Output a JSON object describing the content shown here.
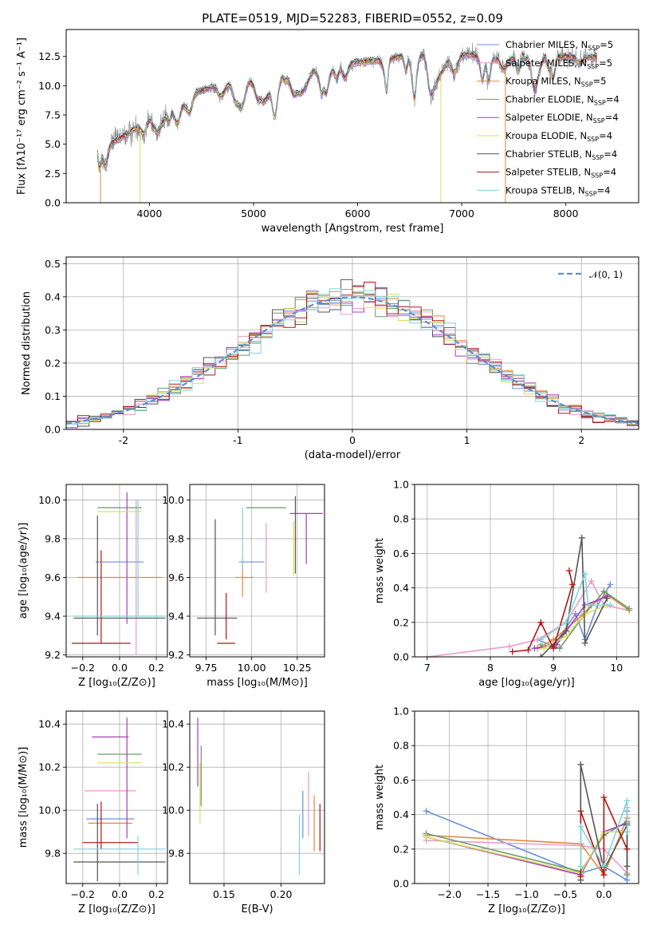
{
  "figure": {
    "title": "PLATE=0519, MJD=52283, FIBERID=0552, z=0.09"
  },
  "colors": {
    "Chabrier MILES": "#6a8fd8",
    "Salpeter MILES": "#e89cc8",
    "Kroupa MILES": "#e08a3c",
    "Chabrier ELODIE": "#6e9a6a",
    "Salpeter ELODIE": "#a73cc0",
    "Kroupa ELODIE": "#d9df5a",
    "Chabrier STELIB": "#555555",
    "Salpeter STELIB": "#b01515",
    "Kroupa STELIB": "#7fd4dc",
    "gaussian": "#5b8fd6",
    "data": "#808080",
    "grid": "#b0b0b0"
  },
  "chart_data": [
    {
      "id": "spectrum",
      "type": "line",
      "title": "PLATE=0519, MJD=52283, FIBERID=0552, z=0.09",
      "xlabel": "wavelength [Angstrom, rest frame]",
      "ylabel": "Flux [fλ10⁻¹⁷ erg cm⁻² s⁻¹ A⁻¹]",
      "xlim": [
        3200,
        8700
      ],
      "ylim": [
        0,
        14.8
      ],
      "xticks": [
        4000,
        5000,
        6000,
        7000,
        8000
      ],
      "yticks": [
        0.0,
        2.5,
        5.0,
        7.5,
        10.0,
        12.5
      ],
      "grid": false,
      "legend_position": "top-right",
      "x_range": [
        3500,
        8300
      ],
      "continuum": {
        "x": [
          3500,
          3700,
          3900,
          4100,
          4300,
          4500,
          4700,
          5000,
          5300,
          5600,
          5900,
          6200,
          6500,
          6800,
          7100,
          7400,
          7700,
          8000,
          8300
        ],
        "y": [
          4.6,
          5.4,
          6.5,
          8.0,
          9.0,
          9.6,
          10.1,
          10.7,
          11.1,
          11.5,
          11.9,
          12.2,
          12.6,
          12.8,
          12.6,
          12.3,
          12.4,
          12.5,
          12.4
        ]
      },
      "series": [
        {
          "name": "Chabrier MILES",
          "nssp_label": "N",
          "nssp_sub": "SSP",
          "nssp_value": "=5"
        },
        {
          "name": "Salpeter MILES",
          "nssp_label": "N",
          "nssp_sub": "SSP",
          "nssp_value": "=5"
        },
        {
          "name": "Kroupa MILES",
          "nssp_label": "N",
          "nssp_sub": "SSP",
          "nssp_value": "=5"
        },
        {
          "name": "Chabrier ELODIE",
          "nssp_label": "N",
          "nssp_sub": "SSP",
          "nssp_value": "=4"
        },
        {
          "name": "Salpeter ELODIE",
          "nssp_label": "N",
          "nssp_sub": "SSP",
          "nssp_value": "=4"
        },
        {
          "name": "Kroupa ELODIE",
          "nssp_label": "N",
          "nssp_sub": "SSP",
          "nssp_value": "=4"
        },
        {
          "name": "Chabrier STELIB",
          "nssp_label": "N",
          "nssp_sub": "SSP",
          "nssp_value": "=4"
        },
        {
          "name": "Salpeter STELIB",
          "nssp_label": "N",
          "nssp_sub": "SSP",
          "nssp_value": "=4"
        },
        {
          "name": "Kroupa STELIB",
          "nssp_label": "N",
          "nssp_sub": "SSP",
          "nssp_value": "=4"
        }
      ],
      "drop_lines": [
        {
          "x": 3530,
          "series": "Kroupa MILES"
        },
        {
          "x": 3910,
          "series": "Kroupa ELODIE"
        },
        {
          "x": 6800,
          "series": "Kroupa ELODIE"
        },
        {
          "x": 7420,
          "series": "Kroupa MILES"
        }
      ]
    },
    {
      "id": "residuals",
      "type": "histogram",
      "xlabel": "(data-model)/error",
      "ylabel": "Normed distribution",
      "xlim": [
        -2.5,
        2.5
      ],
      "ylim": [
        0,
        0.52
      ],
      "xticks": [
        -2,
        -1,
        0,
        1,
        2
      ],
      "yticks": [
        0.0,
        0.1,
        0.2,
        0.3,
        0.4,
        0.5
      ],
      "grid": true,
      "legend_position": "top-right",
      "legend": "𝒩(0, 1)",
      "bin_width": 0.1,
      "bin_start": -2.5
    },
    {
      "id": "age_vs_Z",
      "type": "errorbar",
      "xlabel": "Z [log₁₀(Z/Z⊙)]",
      "ylabel": "age  [log₁₀(age/yr)]",
      "xlim": [
        -0.29,
        0.26
      ],
      "ylim": [
        9.19,
        10.08
      ],
      "xticks": [
        -0.2,
        0.0,
        0.2
      ],
      "xticklabels": [
        "−0.2",
        "0.0",
        "0.2"
      ],
      "yticks": [
        9.2,
        9.4,
        9.6,
        9.8,
        10.0
      ],
      "grid": true,
      "points": [
        {
          "series": "Chabrier MILES",
          "x": 0.0,
          "xerr": 0.13,
          "y": 9.68,
          "yerr": 0.0
        },
        {
          "series": "Salpeter MILES",
          "x": 0.09,
          "xerr": 0.0,
          "y": 9.6,
          "yerr": 0.4
        },
        {
          "series": "Kroupa MILES",
          "x": 0.0,
          "xerr": 0.23,
          "y": 9.6,
          "yerr": 0.0
        },
        {
          "series": "Chabrier ELODIE",
          "x": 0.0,
          "xerr": 0.12,
          "y": 9.96,
          "yerr": 0.0
        },
        {
          "series": "Salpeter ELODIE",
          "x": 0.04,
          "xerr": 0.0,
          "y": 9.7,
          "yerr": 0.34
        },
        {
          "series": "Kroupa ELODIE",
          "x": 0.0,
          "xerr": 0.12,
          "y": 9.94,
          "yerr": 0.0
        },
        {
          "series": "Chabrier STELIB",
          "x": -0.12,
          "xerr": 0.0,
          "y": 9.61,
          "yerr": 0.31
        },
        {
          "series": "Salpeter STELIB",
          "x": -0.1,
          "xerr": 0.0,
          "y": 9.5,
          "yerr": 0.24
        },
        {
          "series": "Salpeter STELIB",
          "x": -0.1,
          "xerr": 0.16,
          "y": 9.26,
          "yerr": 0.0
        },
        {
          "series": "Kroupa STELIB",
          "x": 0.0,
          "xerr": 0.25,
          "y": 9.4,
          "yerr": 0.0
        },
        {
          "series": "Chabrier STELIB",
          "x": 0.0,
          "xerr": 0.25,
          "y": 9.39,
          "yerr": 0.0
        },
        {
          "series": "Kroupa STELIB",
          "x": 0.1,
          "xerr": 0.0,
          "y": 9.7,
          "yerr": 0.3
        }
      ]
    },
    {
      "id": "age_vs_mass",
      "type": "errorbar",
      "xlabel": "mass [log₁₀(M/M⊙)]",
      "xlim": [
        9.66,
        10.4
      ],
      "ylim": [
        9.19,
        10.08
      ],
      "xticks": [
        9.75,
        10.0,
        10.25
      ],
      "xticklabels": [
        "9.75",
        "10.00",
        "10.25"
      ],
      "yticks": [
        9.2,
        9.4,
        9.6,
        9.8,
        10.0
      ],
      "grid": true,
      "points": [
        {
          "series": "Chabrier MILES",
          "x": 10.0,
          "xerr": 0.07,
          "y": 9.68,
          "yerr": 0.0
        },
        {
          "series": "Salpeter MILES",
          "x": 10.08,
          "xerr": 0.0,
          "y": 9.7,
          "yerr": 0.18
        },
        {
          "series": "Kroupa MILES",
          "x": 9.96,
          "xerr": 0.05,
          "y": 9.6,
          "yerr": 0.0
        },
        {
          "series": "Kroupa MILES",
          "x": 9.95,
          "xerr": 0.0,
          "y": 9.6,
          "yerr": 0.1
        },
        {
          "series": "Chabrier ELODIE",
          "x": 10.08,
          "xerr": 0.11,
          "y": 9.96,
          "yerr": 0.0
        },
        {
          "series": "Salpeter ELODIE",
          "x": 10.3,
          "xerr": 0.09,
          "y": 9.93,
          "yerr": 0.0
        },
        {
          "series": "Salpeter ELODIE",
          "x": 10.3,
          "xerr": 0.0,
          "y": 9.8,
          "yerr": 0.13
        },
        {
          "series": "Kroupa ELODIE",
          "x": 10.23,
          "xerr": 0.0,
          "y": 9.75,
          "yerr": 0.14
        },
        {
          "series": "Chabrier STELIB",
          "x": 9.8,
          "xerr": 0.0,
          "y": 9.6,
          "yerr": 0.3
        },
        {
          "series": "Chabrier STELIB",
          "x": 9.81,
          "xerr": 0.11,
          "y": 9.39,
          "yerr": 0.0
        },
        {
          "series": "Chabrier STELIB",
          "x": 10.24,
          "xerr": 0.0,
          "y": 9.82,
          "yerr": 0.2
        },
        {
          "series": "Salpeter STELIB",
          "x": 9.86,
          "xerr": 0.05,
          "y": 9.26,
          "yerr": 0.0
        },
        {
          "series": "Salpeter STELIB",
          "x": 9.86,
          "xerr": 0.0,
          "y": 9.4,
          "yerr": 0.12
        },
        {
          "series": "Kroupa STELIB",
          "x": 9.95,
          "xerr": 0.0,
          "y": 9.8,
          "yerr": 0.16
        }
      ]
    },
    {
      "id": "weight_vs_age",
      "type": "line",
      "xlabel": "age  [log₁₀(age/yr)]",
      "ylabel": "mass weight",
      "xlim": [
        6.8,
        10.35
      ],
      "ylim": [
        0,
        1
      ],
      "xticks": [
        7,
        8,
        9,
        10
      ],
      "yticks": [
        0.0,
        0.2,
        0.4,
        0.6,
        0.8,
        1.0
      ],
      "grid": true,
      "series": [
        {
          "name": "Chabrier MILES",
          "x": [
            8.75,
            9.0,
            9.35,
            9.5,
            9.7,
            9.9
          ],
          "y": [
            0.1,
            0.06,
            0.25,
            0.1,
            0.3,
            0.42
          ]
        },
        {
          "name": "Salpeter MILES",
          "x": [
            7.0,
            8.3,
            8.75,
            9.2,
            9.6,
            9.8,
            10.2
          ],
          "y": [
            0.0,
            0.06,
            0.1,
            0.2,
            0.44,
            0.3,
            0.27
          ]
        },
        {
          "name": "Kroupa MILES",
          "x": [
            8.75,
            9.0,
            9.45,
            9.6,
            9.85,
            10.2
          ],
          "y": [
            0.05,
            0.1,
            0.24,
            0.3,
            0.36,
            0.27
          ]
        },
        {
          "name": "Chabrier ELODIE",
          "x": [
            8.8,
            9.1,
            9.5,
            9.8,
            10.2
          ],
          "y": [
            0.07,
            0.05,
            0.25,
            0.38,
            0.28
          ]
        },
        {
          "name": "Salpeter ELODIE",
          "x": [
            8.7,
            9.05,
            9.5,
            9.85
          ],
          "y": [
            0.05,
            0.07,
            0.3,
            0.35
          ]
        },
        {
          "name": "Kroupa ELODIE",
          "x": [
            8.85,
            9.2,
            9.5,
            9.85
          ],
          "y": [
            0.05,
            0.12,
            0.25,
            0.3
          ]
        },
        {
          "name": "Chabrier STELIB",
          "x": [
            8.8,
            9.2,
            9.45,
            9.5,
            9.85
          ],
          "y": [
            0.0,
            0.15,
            0.69,
            0.08,
            0.34
          ]
        },
        {
          "name": "Salpeter STELIB",
          "x": [
            8.35,
            8.6,
            8.8,
            9.0,
            9.3,
            9.25
          ],
          "y": [
            0.03,
            0.04,
            0.2,
            0.05,
            0.42,
            0.5
          ]
        },
        {
          "name": "Kroupa STELIB",
          "x": [
            8.8,
            9.2,
            9.5,
            9.55,
            9.9
          ],
          "y": [
            0.1,
            0.2,
            0.48,
            0.3,
            0.3
          ]
        }
      ]
    },
    {
      "id": "mass_vs_Z",
      "type": "errorbar",
      "xlabel": "Z [log₁₀(Z/Z⊙)]",
      "ylabel": "mass [log₁₀(M/M⊙)]",
      "xlim": [
        -0.29,
        0.26
      ],
      "ylim": [
        9.66,
        10.46
      ],
      "xticks": [
        -0.2,
        0.0,
        0.2
      ],
      "xticklabels": [
        "−0.2",
        "0.0",
        "0.2"
      ],
      "yticks": [
        9.8,
        10.0,
        10.2,
        10.4
      ],
      "grid": true,
      "points": [
        {
          "series": "Chabrier MILES",
          "x": -0.05,
          "xerr": 0.13,
          "y": 9.96,
          "yerr": 0.0
        },
        {
          "series": "Salpeter MILES",
          "x": -0.05,
          "xerr": 0.14,
          "y": 10.09,
          "yerr": 0.0
        },
        {
          "series": "Kroupa MILES",
          "x": -0.05,
          "xerr": 0.12,
          "y": 9.94,
          "yerr": 0.0
        },
        {
          "series": "Chabrier ELODIE",
          "x": 0.0,
          "xerr": 0.12,
          "y": 10.26,
          "yerr": 0.0
        },
        {
          "series": "Salpeter ELODIE",
          "x": 0.04,
          "xerr": 0.0,
          "y": 10.15,
          "yerr": 0.28
        },
        {
          "series": "Salpeter ELODIE",
          "x": -0.05,
          "xerr": 0.1,
          "y": 10.34,
          "yerr": 0.0
        },
        {
          "series": "Kroupa ELODIE",
          "x": 0.0,
          "xerr": 0.12,
          "y": 10.22,
          "yerr": 0.0
        },
        {
          "series": "Chabrier STELIB",
          "x": 0.0,
          "xerr": 0.25,
          "y": 9.76,
          "yerr": 0.0
        },
        {
          "series": "Chabrier STELIB",
          "x": -0.12,
          "xerr": 0.0,
          "y": 9.85,
          "yerr": 0.18
        },
        {
          "series": "Salpeter STELIB",
          "x": -0.05,
          "xerr": 0.15,
          "y": 9.85,
          "yerr": 0.0
        },
        {
          "series": "Salpeter STELIB",
          "x": -0.1,
          "xerr": 0.0,
          "y": 9.93,
          "yerr": 0.11
        },
        {
          "series": "Kroupa STELIB",
          "x": 0.0,
          "xerr": 0.25,
          "y": 9.82,
          "yerr": 0.0
        },
        {
          "series": "Kroupa STELIB",
          "x": 0.1,
          "xerr": 0.0,
          "y": 9.79,
          "yerr": 0.09
        }
      ]
    },
    {
      "id": "mass_vs_EBV",
      "type": "errorbar",
      "xlabel": "E(B-V)",
      "xlim": [
        0.12,
        0.238
      ],
      "ylim": [
        9.66,
        10.46
      ],
      "xticks": [
        0.15,
        0.2
      ],
      "xticklabels": [
        "0.15",
        "0.20"
      ],
      "yticks": [
        9.8,
        10.0,
        10.2,
        10.4
      ],
      "grid": true,
      "points": [
        {
          "series": "Salpeter ELODIE",
          "x": 0.127,
          "xerr": 0.0,
          "y": 10.27,
          "yerr": 0.16
        },
        {
          "series": "Kroupa ELODIE",
          "x": 0.129,
          "xerr": 0.0,
          "y": 10.08,
          "yerr": 0.14
        },
        {
          "series": "Chabrier ELODIE",
          "x": 0.13,
          "xerr": 0.0,
          "y": 10.16,
          "yerr": 0.14
        },
        {
          "series": "Kroupa STELIB",
          "x": 0.216,
          "xerr": 0.0,
          "y": 9.84,
          "yerr": 0.14
        },
        {
          "series": "Chabrier MILES",
          "x": 0.219,
          "xerr": 0.0,
          "y": 9.98,
          "yerr": 0.11
        },
        {
          "series": "Salpeter MILES",
          "x": 0.224,
          "xerr": 0.0,
          "y": 10.03,
          "yerr": 0.15
        },
        {
          "series": "Kroupa MILES",
          "x": 0.229,
          "xerr": 0.0,
          "y": 9.94,
          "yerr": 0.13
        },
        {
          "series": "Salpeter STELIB",
          "x": 0.234,
          "xerr": 0.0,
          "y": 9.92,
          "yerr": 0.11
        }
      ]
    },
    {
      "id": "weight_vs_Z",
      "type": "line",
      "xlabel": "Z [log₁₀(Z/Z⊙)]",
      "ylabel": "mass weight",
      "xlim": [
        -2.45,
        0.45
      ],
      "ylim": [
        0,
        1
      ],
      "xticks": [
        -2.0,
        -1.5,
        -1.0,
        -0.5,
        0.0
      ],
      "xticklabels": [
        "−2.0",
        "−1.5",
        "−1.0",
        "−0.5",
        "0.0"
      ],
      "yticks": [
        0.0,
        0.2,
        0.4,
        0.6,
        0.8,
        1.0
      ],
      "grid": true,
      "series": [
        {
          "name": "Chabrier MILES",
          "x": [
            -2.3,
            -0.3,
            0.0,
            0.3,
            0.3
          ],
          "y": [
            0.42,
            0.06,
            0.1,
            0.02,
            0.42
          ]
        },
        {
          "name": "Salpeter MILES",
          "x": [
            -2.3,
            -0.3,
            0.0,
            0.3,
            0.3
          ],
          "y": [
            0.25,
            0.22,
            0.2,
            0.06,
            0.44
          ]
        },
        {
          "name": "Kroupa MILES",
          "x": [
            -2.3,
            -0.3,
            0.0,
            0.3
          ],
          "y": [
            0.28,
            0.23,
            0.05,
            0.38
          ]
        },
        {
          "name": "Chabrier ELODIE",
          "x": [
            -2.3,
            -0.3,
            0.0,
            0.3,
            0.3
          ],
          "y": [
            0.29,
            0.07,
            0.28,
            0.36,
            0.05
          ]
        },
        {
          "name": "Salpeter ELODIE",
          "x": [
            -2.3,
            -0.3,
            0.0,
            0.3
          ],
          "y": [
            0.27,
            0.05,
            0.3,
            0.35
          ]
        },
        {
          "name": "Kroupa ELODIE",
          "x": [
            -2.3,
            -0.3,
            0.0,
            0.3
          ],
          "y": [
            0.27,
            0.06,
            0.3,
            0.3
          ]
        },
        {
          "name": "Chabrier STELIB",
          "x": [
            -0.3,
            -0.3,
            0.0,
            0.3,
            0.3
          ],
          "y": [
            0.02,
            0.69,
            0.08,
            0.34,
            0.1
          ]
        },
        {
          "name": "Salpeter STELIB",
          "x": [
            -0.3,
            -0.3,
            0.0,
            0.0,
            0.3
          ],
          "y": [
            0.04,
            0.42,
            0.05,
            0.5,
            0.2
          ]
        },
        {
          "name": "Kroupa STELIB",
          "x": [
            -0.3,
            -0.3,
            0.0,
            0.3,
            0.3
          ],
          "y": [
            0.1,
            0.33,
            0.1,
            0.48,
            0.3
          ]
        }
      ]
    }
  ]
}
